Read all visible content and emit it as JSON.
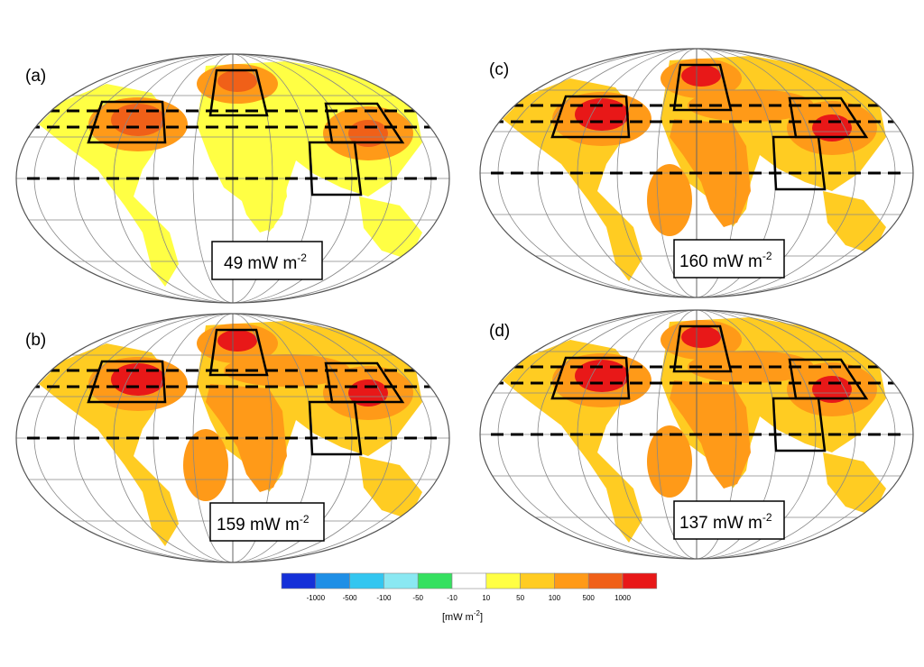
{
  "panels": [
    {
      "id": "a",
      "label": "(a)",
      "value": "49",
      "unit": "mW m",
      "exponent": "-2"
    },
    {
      "id": "b",
      "label": "(b)",
      "value": "159",
      "unit": "mW m",
      "exponent": "-2"
    },
    {
      "id": "c",
      "label": "(c)",
      "value": "160",
      "unit": "mW m",
      "exponent": "-2"
    },
    {
      "id": "d",
      "label": "(d)",
      "value": "137",
      "unit": "mW m",
      "exponent": "-2"
    }
  ],
  "colorbar": {
    "ticks": [
      "-1000",
      "-500",
      "-100",
      "-50",
      "-10",
      "10",
      "50",
      "100",
      "500",
      "1000"
    ],
    "colors": [
      "#1530d8",
      "#1f8fe6",
      "#33c6f0",
      "#8ae8f2",
      "#35e060",
      "#ffffff",
      "#ffff44",
      "#ffcc22",
      "#ff9a18",
      "#f06018",
      "#e81818"
    ],
    "unit_label": "[mW m",
    "unit_exponent": "-2",
    "unit_close": "]"
  }
}
